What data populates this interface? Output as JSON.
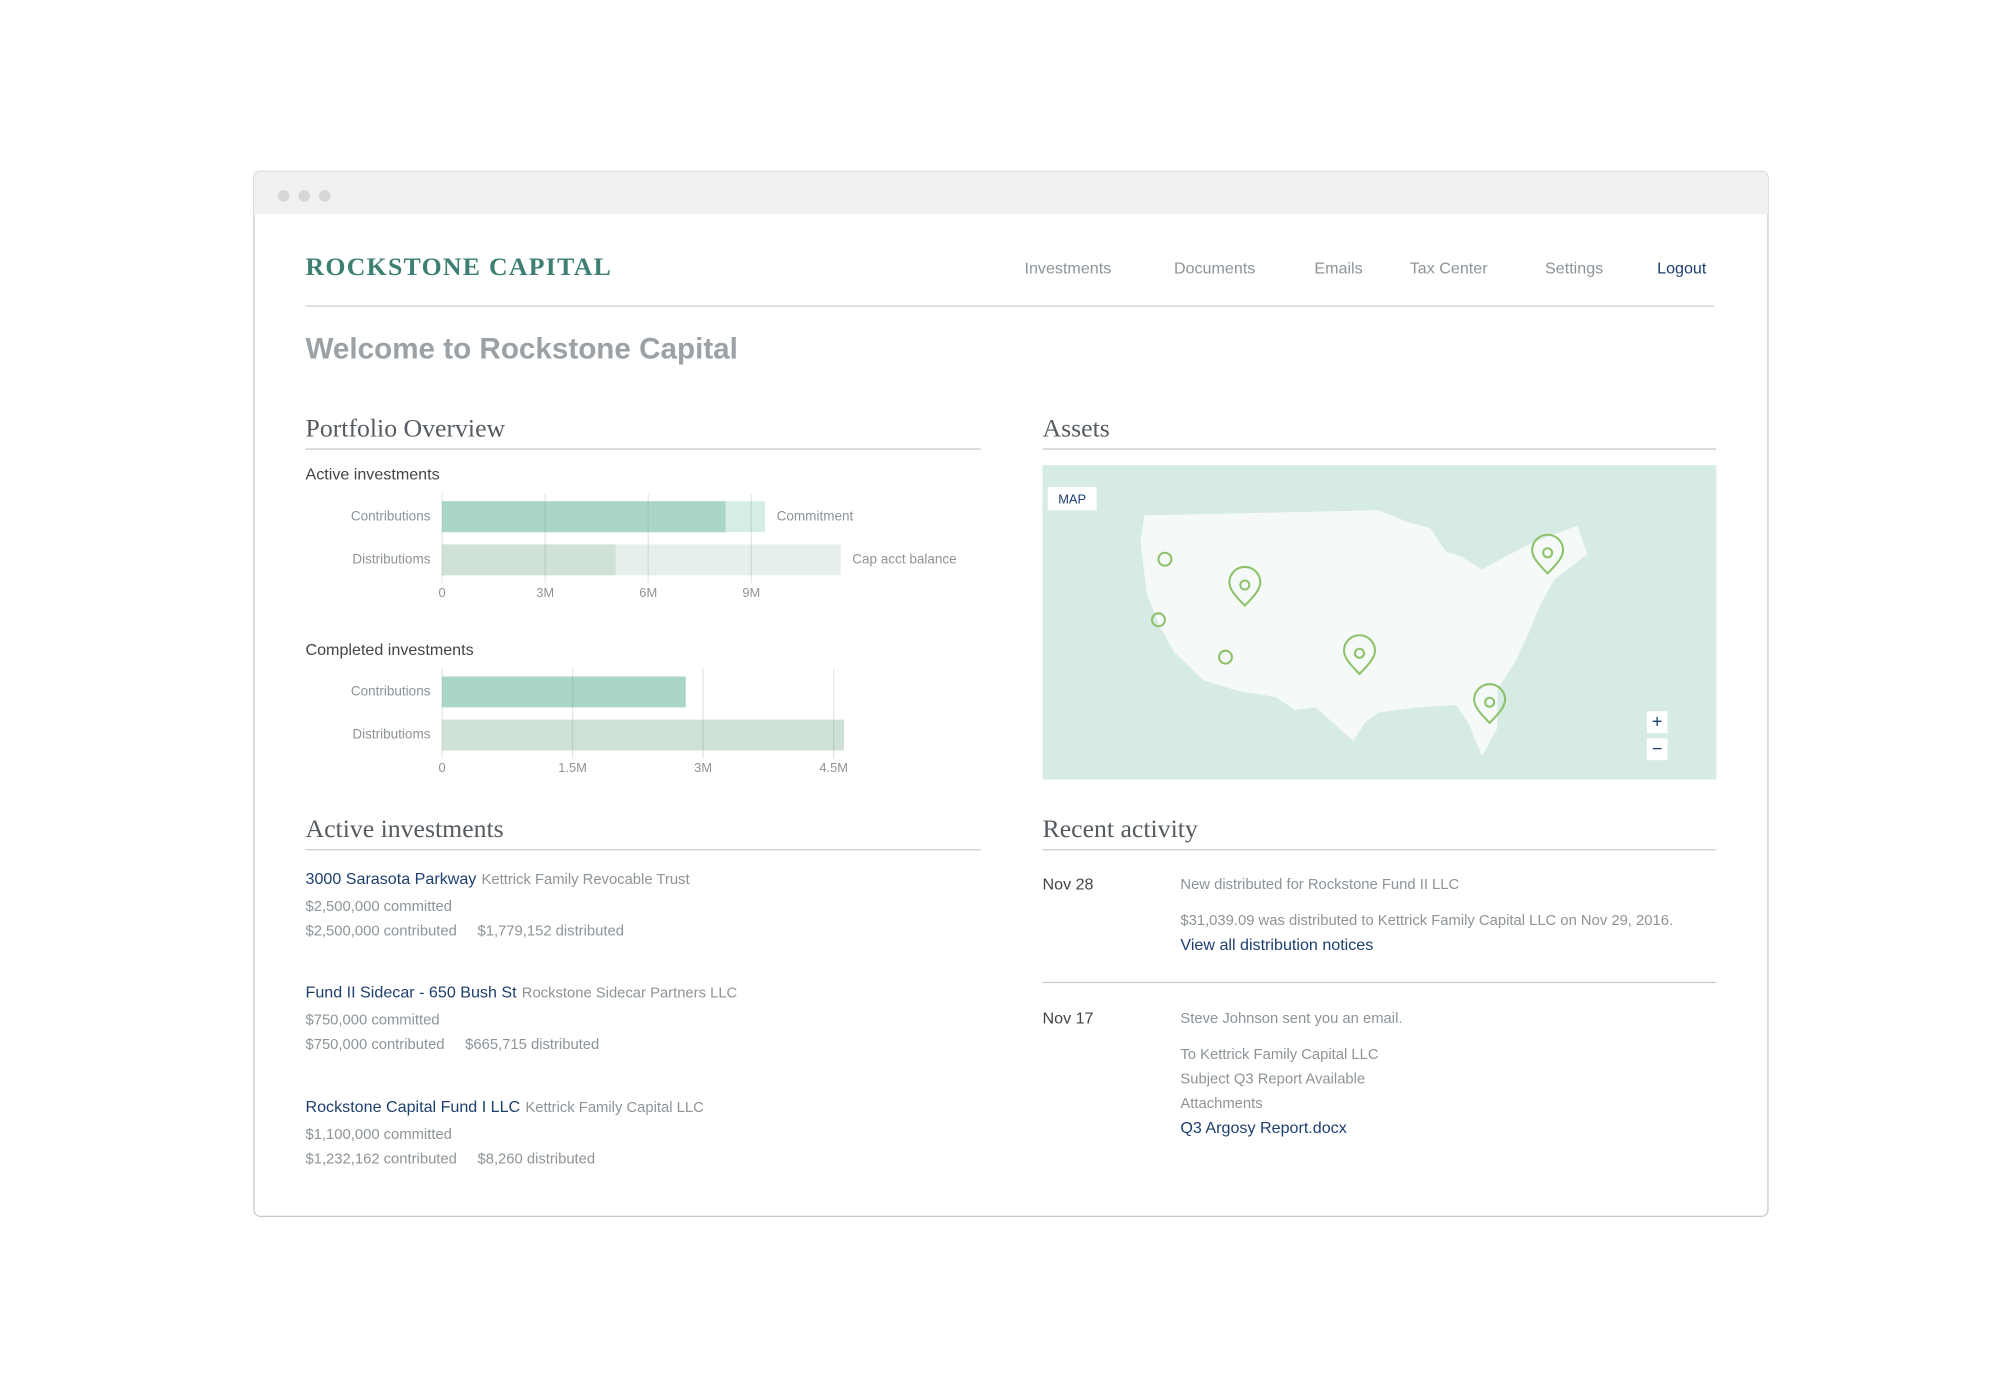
{
  "nav": {
    "brand": "ROCKSTONE CAPITAL",
    "links": [
      "Investments",
      "Documents",
      "Emails",
      "Tax Center",
      "Settings",
      "Logout"
    ]
  },
  "welcome": "Welcome to Rockstone Capital",
  "portfolio": {
    "title": "Portfolio Overview"
  },
  "chart_data": [
    {
      "type": "bar",
      "orientation": "horizontal",
      "title": "Active investments",
      "categories": [
        "Contributions",
        "Distributioms"
      ],
      "values": [
        8250000,
        5050000
      ],
      "colors": [
        "#a9d6c7",
        "#d0e1d7"
      ],
      "totals": [
        9400000,
        11600000
      ],
      "total_labels": [
        "Commitment",
        "Cap acct balance"
      ],
      "total_colors": [
        "#d6ede5",
        "#e6efe9"
      ],
      "xlim": [
        0,
        12000000
      ],
      "xticks": [
        0,
        {
          "value": 3000000,
          "label": "3M"
        },
        {
          "value": 6000000,
          "label": "6M"
        },
        {
          "value": 9000000,
          "label": "9M"
        }
      ],
      "grid": true
    },
    {
      "type": "bar",
      "orientation": "horizontal",
      "title": "Completed investments",
      "categories": [
        "Contributions",
        "Distributioms"
      ],
      "values": [
        2800000,
        4620000
      ],
      "colors": [
        "#a9d6c7",
        "#d0e1d7"
      ],
      "xlim": [
        0,
        4800000
      ],
      "xticks": [
        0,
        {
          "value": 1500000,
          "label": "1.5M"
        },
        {
          "value": 3000000,
          "label": "3M"
        },
        {
          "value": 4500000,
          "label": "4.5M"
        }
      ],
      "grid": true
    }
  ],
  "assets": {
    "title": "Assets",
    "map_label": "MAP",
    "zoom_in": "+",
    "zoom_out": "−"
  },
  "investments": {
    "title": "Active investments",
    "items": [
      {
        "name": "3000 Sarasota Parkway",
        "entity": "Kettrick Family Revocable Trust",
        "committed": "$2,500,000 committed",
        "contributed": "$2,500,000 contributed",
        "distributed": "$1,779,152 distributed"
      },
      {
        "name": "Fund II Sidecar - 650 Bush St",
        "entity": "Rockstone Sidecar Partners LLC",
        "committed": "$750,000 committed",
        "contributed": "$750,000 contributed",
        "distributed": "$665,715 distributed"
      },
      {
        "name": "Rockstone Capital Fund I LLC",
        "entity": "Kettrick Family Capital LLC",
        "committed": "$1,100,000 committed",
        "contributed": "$1,232,162 contributed",
        "distributed": "$8,260 distributed"
      }
    ]
  },
  "activity": {
    "title": "Recent activity",
    "items": [
      {
        "date": "Nov 28",
        "lines": [
          "New distributed for Rockstone Fund II LLC",
          "$31,039.09 was distributed to Kettrick Family Capital LLC on Nov 29, 2016."
        ],
        "link": "View all distribution notices"
      },
      {
        "date": "Nov 17",
        "lines": [
          "Steve Johnson sent you an email.",
          "To Kettrick Family Capital LLC",
          "Subject Q3 Report Available",
          "Attachments"
        ],
        "link": "Q3 Argosy Report.docx"
      }
    ]
  }
}
